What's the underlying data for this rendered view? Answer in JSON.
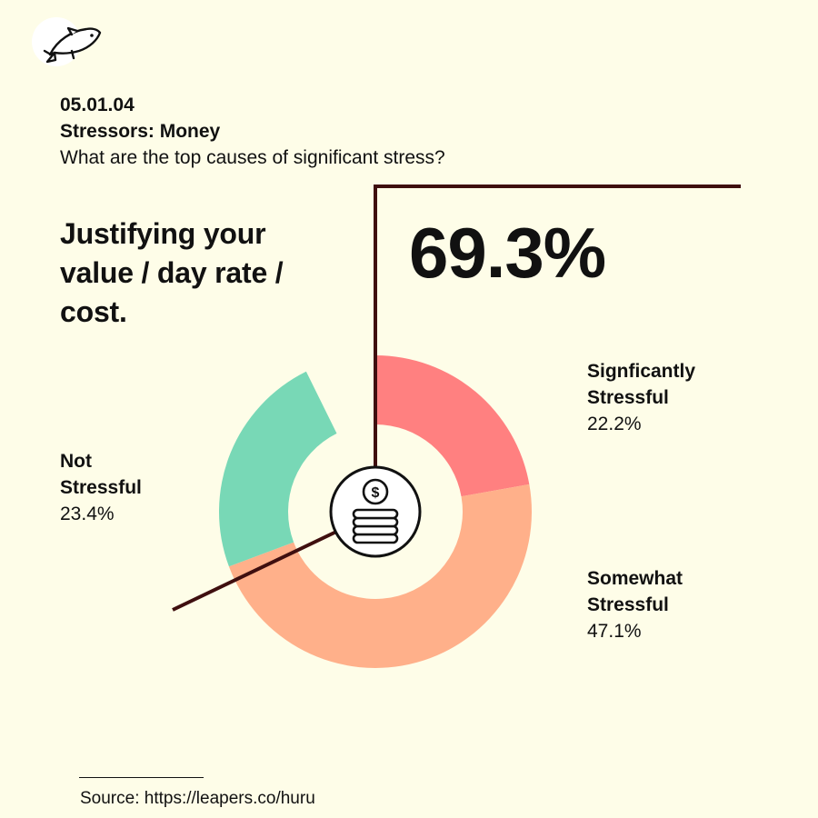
{
  "header": {
    "code": "05.01.04",
    "topic": "Stressors: Money",
    "question": "What are the top causes of significant stress?"
  },
  "item_title": "Justifying your value / day rate / cost.",
  "highlight_percent": "69.3%",
  "chart_data": {
    "type": "pie",
    "style": "donut",
    "title": "",
    "categories": [
      "Signficantly Stressful",
      "Somewhat Stressful",
      "Not Stressful"
    ],
    "values": [
      22.2,
      47.1,
      23.4
    ],
    "value_labels": [
      "22.2%",
      "47.1%",
      "23.4%"
    ],
    "colors": [
      "#ff8080",
      "#ffb08a",
      "#78d8b6"
    ],
    "label_lines": [
      [
        "Signficantly",
        "Stressful"
      ],
      [
        "Somewhat",
        "Stressful"
      ],
      [
        "Not",
        "Stressful"
      ]
    ]
  },
  "colors": {
    "background": "#fefde8",
    "accent_line": "#3f0f0f",
    "text": "#111111"
  },
  "icons": {
    "logo": "fish-icon",
    "center": "dollar-coins-icon"
  },
  "source": "Source: https://leapers.co/huru"
}
